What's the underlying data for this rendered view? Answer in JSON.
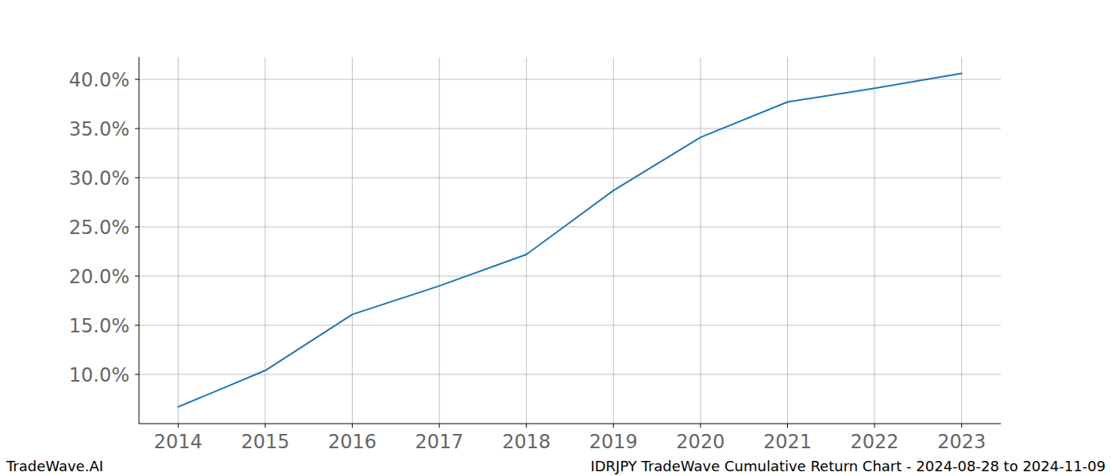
{
  "chart_data": {
    "type": "line",
    "title": "IDRJPY TradeWave Cumulative Return Chart - 2024-08-28 to 2024-11-09",
    "source": "TradeWave.AI",
    "x": [
      2014,
      2015,
      2016,
      2017,
      2018,
      2019,
      2020,
      2021,
      2022,
      2023
    ],
    "values": [
      6.7,
      10.4,
      16.1,
      19.0,
      22.2,
      28.7,
      34.1,
      37.7,
      39.1,
      40.6
    ],
    "color": "#1f77b4",
    "xlim": [
      2013.55,
      2023.45
    ],
    "xticks": [
      2014,
      2015,
      2016,
      2017,
      2018,
      2019,
      2020,
      2021,
      2022,
      2023
    ],
    "ylim": [
      5.0,
      42.26
    ],
    "yticks": [
      {
        "value": 10,
        "label": "10.0%"
      },
      {
        "value": 15,
        "label": "15.0%"
      },
      {
        "value": 20,
        "label": "20.0%"
      },
      {
        "value": 25,
        "label": "25.0%"
      },
      {
        "value": 30,
        "label": "30.0%"
      },
      {
        "value": 35,
        "label": "35.0%"
      },
      {
        "value": 40,
        "label": "40.0%"
      }
    ],
    "grid": true
  }
}
